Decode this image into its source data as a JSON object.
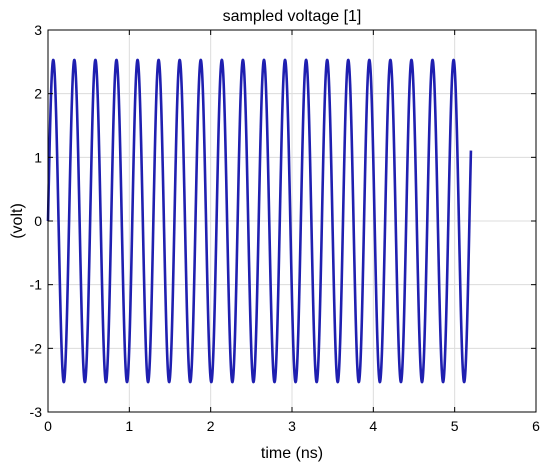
{
  "chart_data": {
    "type": "line",
    "title": "sampled voltage [1]",
    "xlabel": "time (ns)",
    "ylabel": "(volt)",
    "xlim": [
      0,
      6
    ],
    "ylim": [
      -3,
      3
    ],
    "xticks": [
      0,
      1,
      2,
      3,
      4,
      5,
      6
    ],
    "yticks": [
      -3,
      -2,
      -1,
      0,
      1,
      2,
      3
    ],
    "grid": true,
    "series": [
      {
        "color": "#1f1fb0",
        "function": "sine",
        "amplitude": 2.53,
        "offset": 0,
        "frequency_ghz": 3.86,
        "phase": 0,
        "x_start": 0,
        "x_end": 5.2
      }
    ]
  }
}
